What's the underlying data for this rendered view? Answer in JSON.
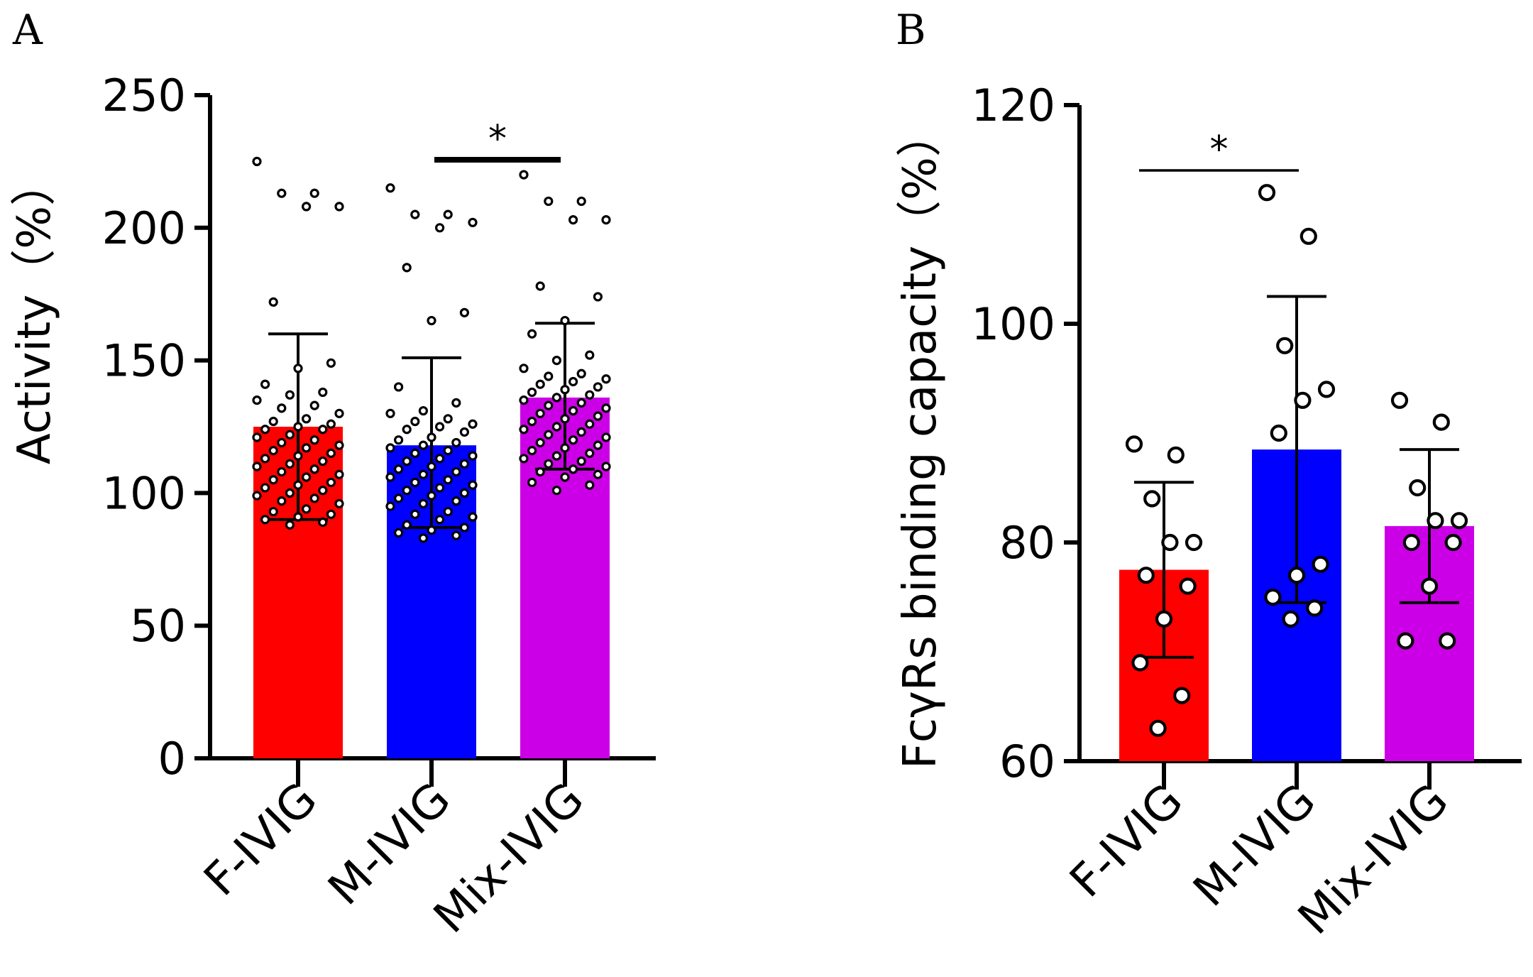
{
  "chart_data": [
    {
      "panel": "A",
      "type": "bar",
      "ylabel": "Activity（%）",
      "ylim": [
        0,
        250
      ],
      "yticks": [
        0,
        50,
        100,
        150,
        200,
        250
      ],
      "categories": [
        "F-IVIG",
        "M-IVIG",
        "Mix-IVIG"
      ],
      "colors": [
        "#ff0000",
        "#0000ff",
        "#cc00e6"
      ],
      "values": [
        125,
        118,
        136
      ],
      "error_high": [
        160,
        151,
        164
      ],
      "error_low": [
        90,
        87,
        109
      ],
      "points": [
        [
          225,
          213,
          213,
          208,
          208,
          172,
          149,
          147,
          141,
          138,
          137,
          135,
          133,
          132,
          130,
          128,
          127,
          126,
          125,
          124,
          124,
          122,
          121,
          120,
          119,
          118,
          117,
          116,
          115,
          114,
          113,
          112,
          111,
          110,
          109,
          108,
          107,
          106,
          105,
          104,
          103,
          102,
          101,
          100,
          99,
          98,
          97,
          96,
          94,
          93,
          92,
          91,
          90,
          89,
          88
        ],
        [
          215,
          205,
          205,
          202,
          200,
          185,
          168,
          165,
          140,
          134,
          131,
          130,
          128,
          127,
          126,
          125,
          124,
          123,
          121,
          120,
          119,
          118,
          117,
          116,
          115,
          114,
          113,
          112,
          111,
          110,
          109,
          108,
          107,
          106,
          105,
          104,
          103,
          102,
          101,
          100,
          99,
          98,
          97,
          96,
          95,
          93,
          92,
          91,
          90,
          88,
          87,
          86,
          85,
          84,
          83
        ],
        [
          220,
          210,
          210,
          203,
          203,
          178,
          174,
          165,
          160,
          152,
          150,
          147,
          145,
          144,
          143,
          142,
          141,
          140,
          139,
          138,
          137,
          136,
          135,
          134,
          133,
          132,
          131,
          130,
          129,
          128,
          127,
          126,
          125,
          124,
          123,
          122,
          121,
          120,
          119,
          118,
          117,
          116,
          115,
          114,
          113,
          112,
          111,
          110,
          109,
          108,
          107,
          106,
          104,
          103,
          101
        ]
      ],
      "significance": {
        "from": 1,
        "to": 2,
        "label": "*"
      }
    },
    {
      "panel": "B",
      "type": "bar",
      "ylabel": "FcγRs binding capacity（%）",
      "ylim": [
        60,
        120
      ],
      "yticks": [
        60,
        80,
        100,
        120
      ],
      "categories": [
        "F-IVIG",
        "M-IVIG",
        "Mix-IVIG"
      ],
      "colors": [
        "#ff0000",
        "#0000ff",
        "#cc00e6"
      ],
      "values": [
        77.5,
        88.5,
        81.5
      ],
      "error_high": [
        85.5,
        102.5,
        88.5
      ],
      "error_low": [
        69.5,
        74.5,
        74.5
      ],
      "points": [
        [
          89,
          88,
          84,
          80,
          80,
          77,
          76,
          73,
          69,
          66,
          63
        ],
        [
          112,
          108,
          98,
          94,
          93,
          90,
          78,
          77,
          75,
          74,
          73
        ],
        [
          93,
          91,
          85,
          82,
          82,
          80,
          80,
          76,
          71,
          71
        ]
      ],
      "significance": {
        "from": 0,
        "to": 1,
        "label": "*"
      }
    }
  ]
}
